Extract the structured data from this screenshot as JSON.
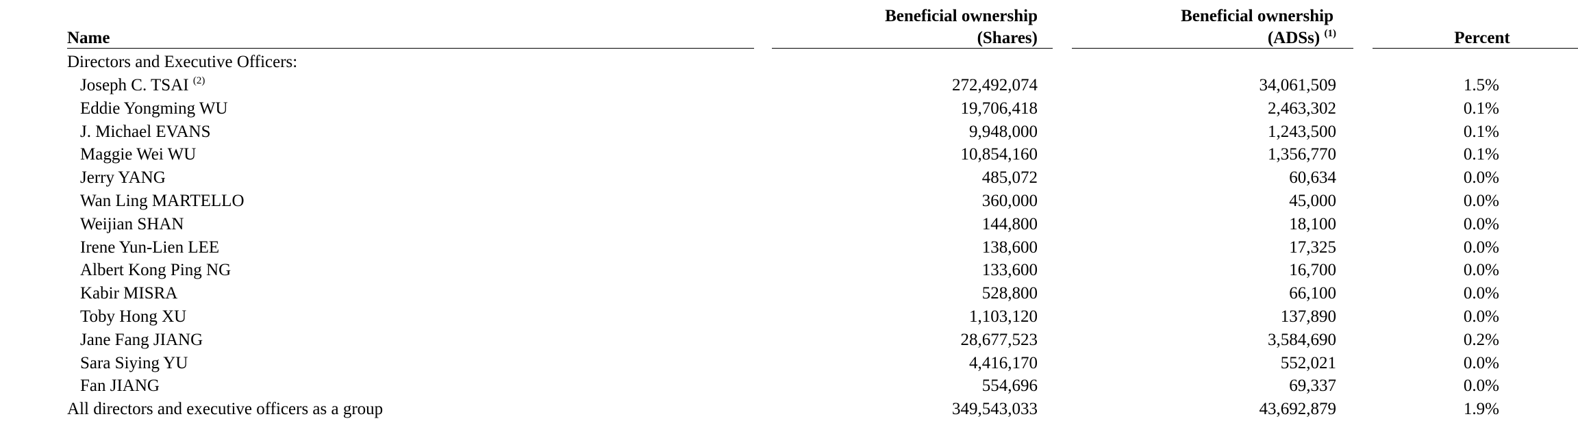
{
  "table": {
    "headers": {
      "name": "Name",
      "shares": [
        "Beneficial ownership",
        "(Shares)"
      ],
      "adss": [
        "Beneficial ownership",
        "(ADSs)"
      ],
      "adss_note": "(1)",
      "percent": "Percent"
    },
    "section": "Directors and Executive Officers:",
    "rows": [
      {
        "name": "Joseph C. TSAI",
        "note": "(2)",
        "shares": "272,492,074",
        "adss": "34,061,509",
        "percent": "1.5%"
      },
      {
        "name": "Eddie Yongming WU",
        "shares": "19,706,418",
        "adss": "2,463,302",
        "percent": "0.1%"
      },
      {
        "name": "J. Michael EVANS",
        "shares": "9,948,000",
        "adss": "1,243,500",
        "percent": "0.1%"
      },
      {
        "name": "Maggie Wei WU",
        "shares": "10,854,160",
        "adss": "1,356,770",
        "percent": "0.1%"
      },
      {
        "name": "Jerry YANG",
        "shares": "485,072",
        "adss": "60,634",
        "percent": "0.0%"
      },
      {
        "name": "Wan Ling MARTELLO",
        "shares": "360,000",
        "adss": "45,000",
        "percent": "0.0%"
      },
      {
        "name": "Weijian SHAN",
        "shares": "144,800",
        "adss": "18,100",
        "percent": "0.0%"
      },
      {
        "name": "Irene Yun-Lien LEE",
        "shares": "138,600",
        "adss": "17,325",
        "percent": "0.0%"
      },
      {
        "name": "Albert Kong Ping NG",
        "shares": "133,600",
        "adss": "16,700",
        "percent": "0.0%"
      },
      {
        "name": "Kabir MISRA",
        "shares": "528,800",
        "adss": "66,100",
        "percent": "0.0%"
      },
      {
        "name": "Toby Hong XU",
        "shares": "1,103,120",
        "adss": "137,890",
        "percent": "0.0%"
      },
      {
        "name": "Jane Fang JIANG",
        "shares": "28,677,523",
        "adss": "3,584,690",
        "percent": "0.2%"
      },
      {
        "name": "Sara Siying YU",
        "shares": "4,416,170",
        "adss": "552,021",
        "percent": "0.0%"
      },
      {
        "name": "Fan JIANG",
        "shares": "554,696",
        "adss": "69,337",
        "percent": "0.0%"
      }
    ],
    "total": {
      "name": "All directors and executive officers as a group",
      "shares": "349,543,033",
      "adss": "43,692,879",
      "percent": "1.9%"
    }
  }
}
